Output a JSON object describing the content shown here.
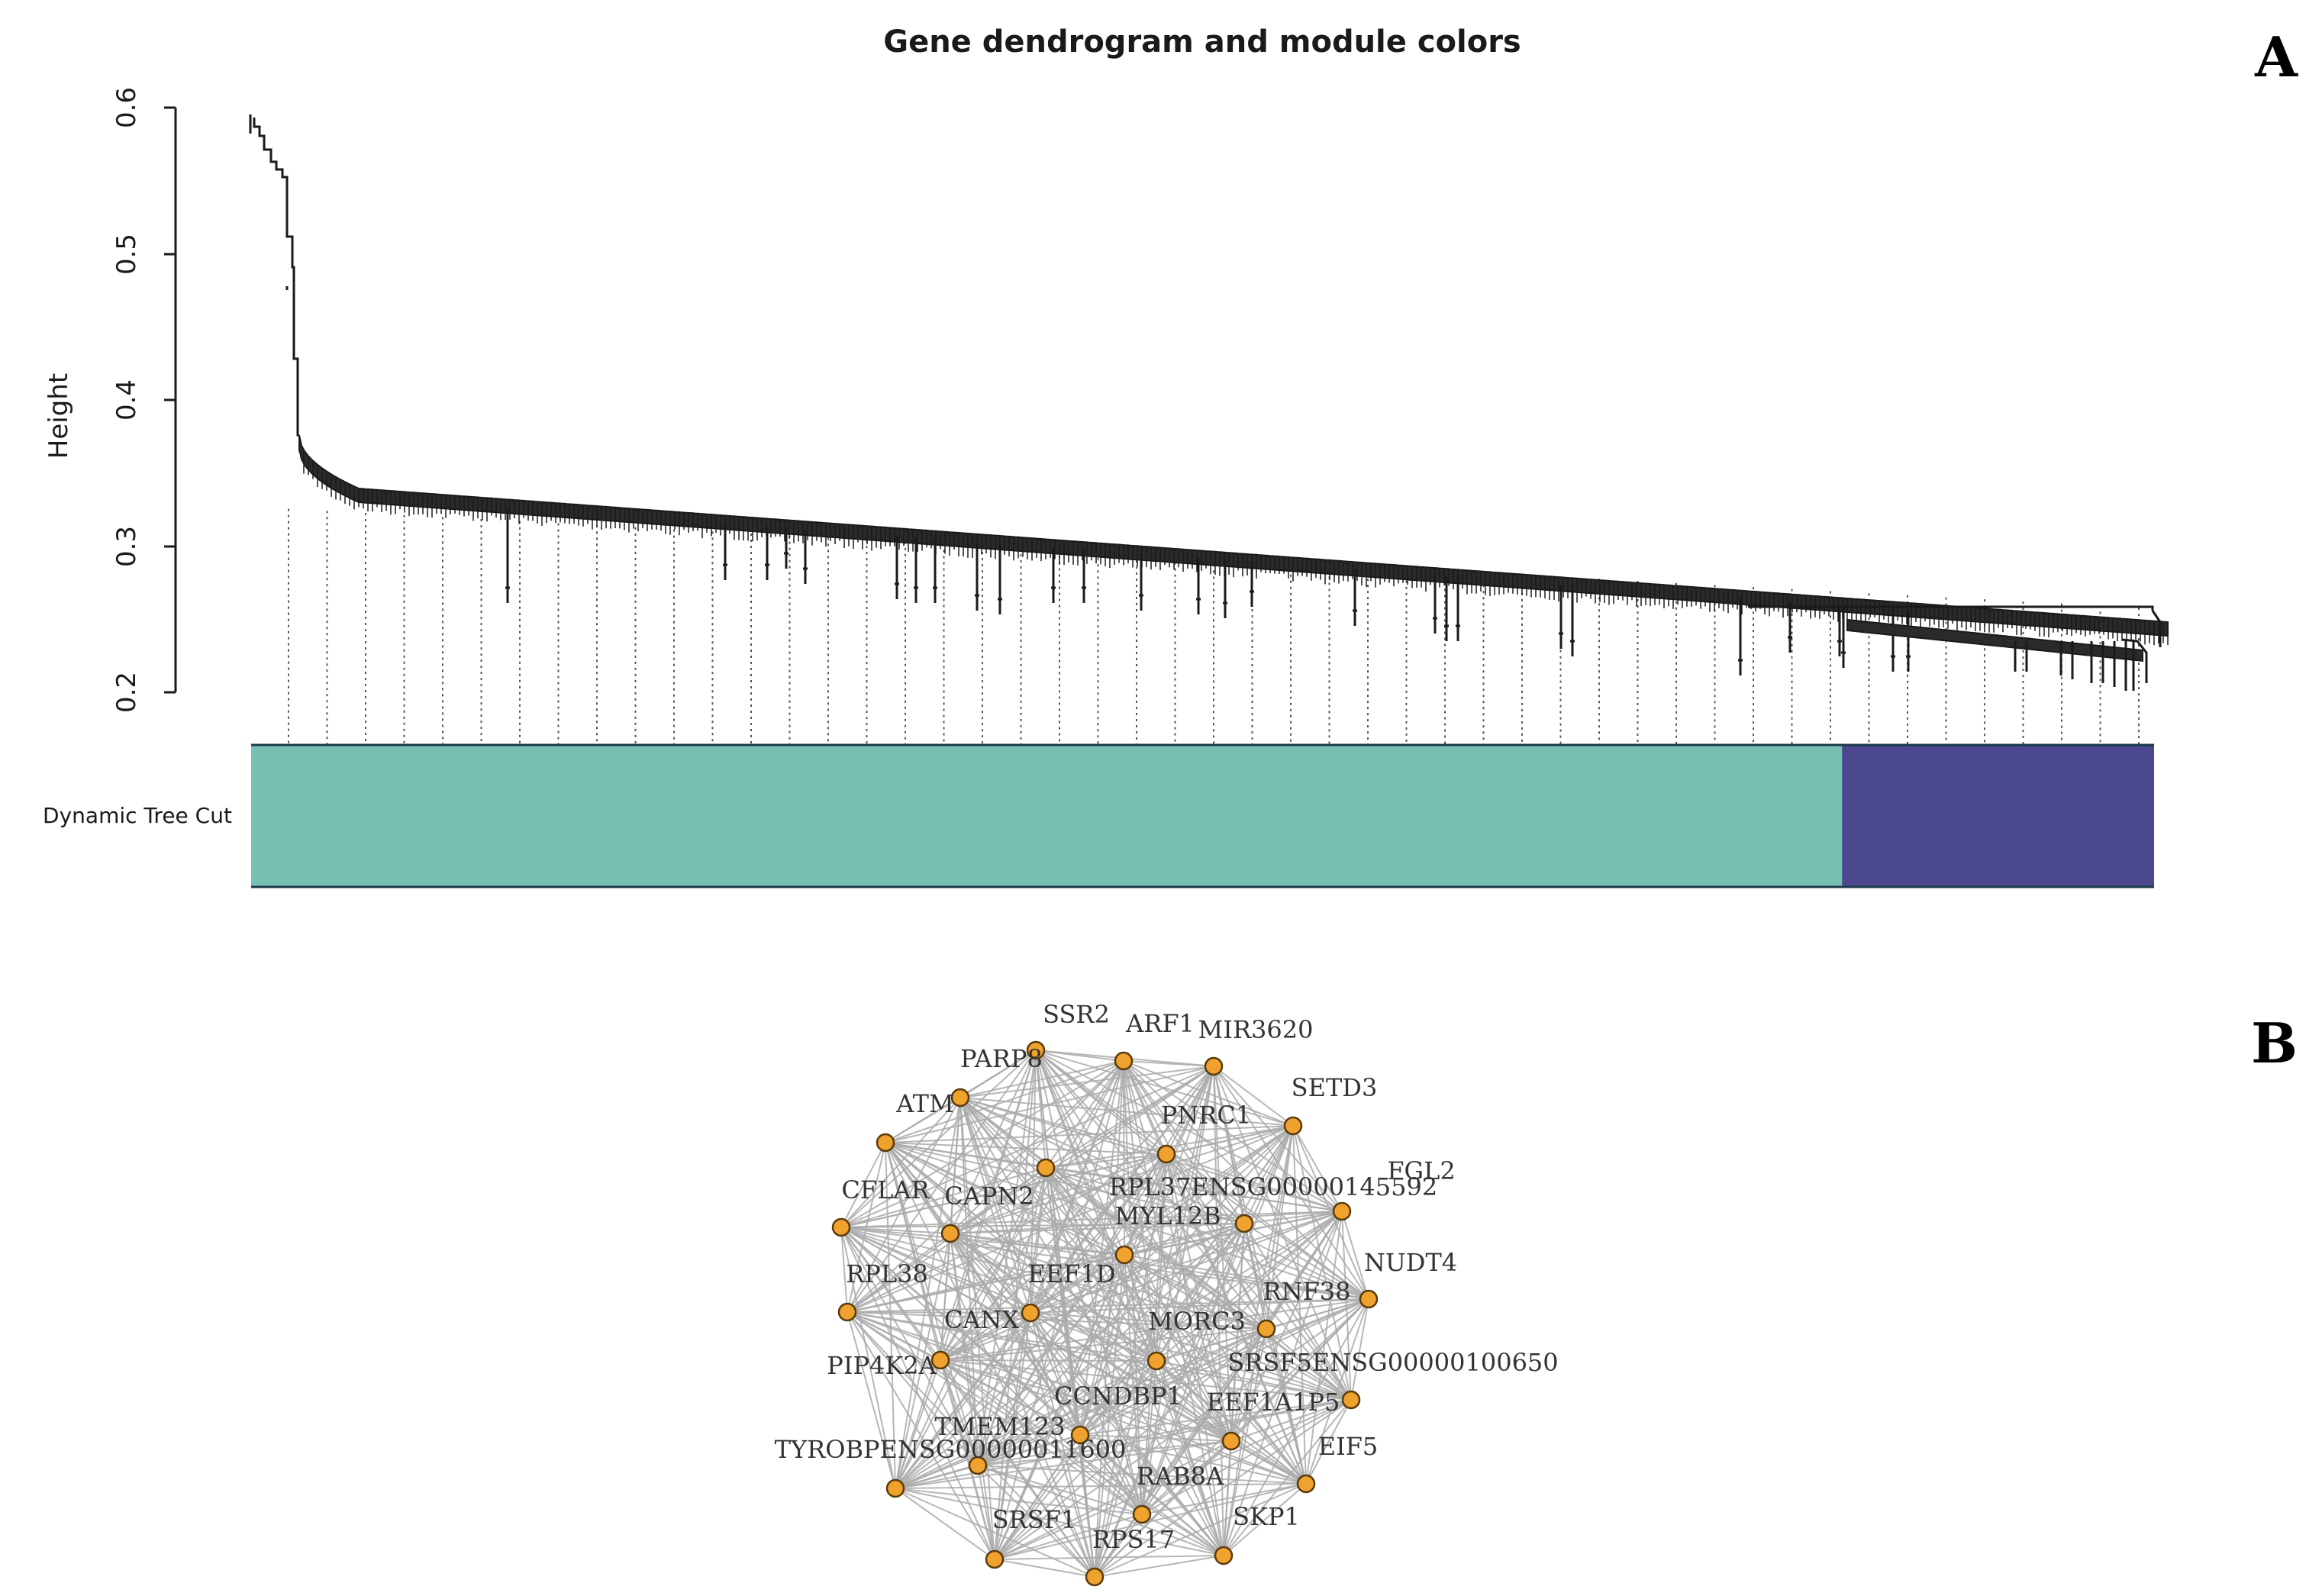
{
  "panel_a": {
    "label": "A",
    "title": "Gene dendrogram and module colors",
    "y_axis_label": "Height",
    "y_ticks": [
      "0.2",
      "0.3",
      "0.4",
      "0.5",
      "0.6"
    ],
    "color_bar_label": "Dynamic Tree Cut",
    "modules": [
      {
        "name": "turquoise",
        "color": "#76c1b3",
        "fraction": 0.836
      },
      {
        "name": "blue",
        "color": "#4a478c",
        "fraction": 0.164
      }
    ],
    "line_color": "#1a1a1a"
  },
  "panel_b": {
    "label": "B",
    "node_fill": "#f0a22e",
    "node_stroke": "#5a3a0a",
    "edge_color": "#aaaaaa",
    "nodes": [
      {
        "id": "SSR2",
        "label": "SSR2"
      },
      {
        "id": "ARF1",
        "label": "ARF1"
      },
      {
        "id": "MIR3620",
        "label": "MIR3620"
      },
      {
        "id": "PARP8",
        "label": "PARP8"
      },
      {
        "id": "SETD3",
        "label": "SETD3"
      },
      {
        "id": "ATM",
        "label": "ATM"
      },
      {
        "id": "PNRC1",
        "label": "PNRC1"
      },
      {
        "id": "FGL2",
        "label": "FGL2"
      },
      {
        "id": "RPL37ENSG00000145592",
        "label": "RPL37ENSG00000145592"
      },
      {
        "id": "CFLAR",
        "label": "CFLAR"
      },
      {
        "id": "CAPN2",
        "label": "CAPN2"
      },
      {
        "id": "MYL12B",
        "label": "MYL12B"
      },
      {
        "id": "NUDT4",
        "label": "NUDT4"
      },
      {
        "id": "RPL38",
        "label": "RPL38"
      },
      {
        "id": "EEF1D",
        "label": "EEF1D"
      },
      {
        "id": "RNF38",
        "label": "RNF38"
      },
      {
        "id": "CANX",
        "label": "CANX"
      },
      {
        "id": "MORC3",
        "label": "MORC3"
      },
      {
        "id": "PIP4K2A",
        "label": "PIP4K2A"
      },
      {
        "id": "SRSF5ENSG00000100650",
        "label": "SRSF5ENSG00000100650"
      },
      {
        "id": "CCNDBP1",
        "label": "CCNDBP1"
      },
      {
        "id": "EEF1A1P5",
        "label": "EEF1A1P5"
      },
      {
        "id": "TMEM123",
        "label": "TMEM123"
      },
      {
        "id": "TYROBPENSG00000011600",
        "label": "TYROBPENSG00000011600"
      },
      {
        "id": "EIF5",
        "label": "EIF5"
      },
      {
        "id": "RAB8A",
        "label": "RAB8A"
      },
      {
        "id": "SKP1",
        "label": "SKP1"
      },
      {
        "id": "SRSF1",
        "label": "SRSF1"
      },
      {
        "id": "RPS17",
        "label": "RPS17"
      }
    ]
  }
}
